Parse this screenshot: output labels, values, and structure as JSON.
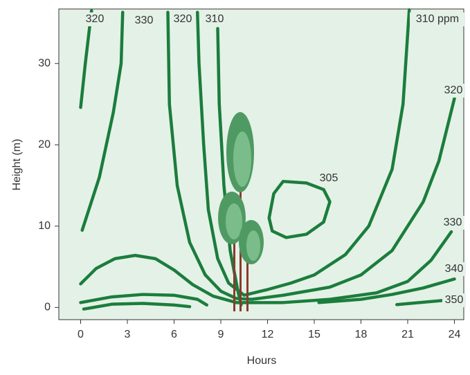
{
  "chart_data": {
    "type": "contour",
    "x_label": "Hours",
    "y_label": "Height (m)",
    "xlim": [
      -1.4,
      24.6
    ],
    "ylim": [
      -1.5,
      36.7
    ],
    "xticks": [
      0,
      3,
      6,
      9,
      12,
      15,
      18,
      21,
      24
    ],
    "yticks": [
      0,
      10,
      20,
      30
    ],
    "color": "#1b7d3c",
    "background": "#e4f1e7",
    "contours": [
      {
        "label": "320",
        "x": [
          0,
          0.3,
          0.7
        ],
        "y": [
          24.6,
          30,
          36.5
        ]
      },
      {
        "label": "330",
        "x": [
          0.1,
          1.2,
          2.1,
          2.6,
          2.7
        ],
        "y": [
          9.5,
          16,
          24,
          30,
          36.3
        ]
      },
      {
        "label": "320",
        "x": [
          5.6,
          5.7,
          6.2,
          7,
          8,
          9,
          10,
          11,
          13,
          16,
          18,
          20,
          22,
          23,
          24
        ],
        "y": [
          36.3,
          25,
          15,
          8,
          4,
          2,
          1.1,
          1,
          1.5,
          2.5,
          4,
          7,
          13,
          18,
          25.7
        ]
      },
      {
        "label": "310",
        "x": [
          7.5,
          7.6,
          7.9,
          8.2,
          8.8,
          9.5,
          10.5,
          12,
          13.5,
          15,
          17,
          18.5,
          20,
          20.7,
          21.1
        ],
        "y": [
          36.3,
          30,
          20,
          12,
          6,
          3,
          1.5,
          2.2,
          3,
          4,
          6.5,
          10,
          17,
          25,
          36.6
        ]
      },
      {
        "label": null,
        "x": [
          8.8,
          8.9,
          9.2,
          9.6,
          10.1,
          10.3
        ],
        "y": [
          34.3,
          25,
          15,
          7,
          2,
          0.3
        ]
      },
      {
        "label": "305",
        "x": [
          12.1,
          12.4,
          13,
          14.5,
          15.6,
          16,
          15.6,
          14.5,
          13.2,
          12.3,
          12.1
        ],
        "y": [
          11,
          14,
          15.5,
          15.3,
          14.5,
          13,
          10.5,
          9,
          8.6,
          9.4,
          11
        ]
      },
      {
        "label": null,
        "x": [
          0,
          1,
          2.2,
          3.5,
          4.8,
          6,
          7.2,
          8.5,
          10
        ],
        "y": [
          2.9,
          4.8,
          6,
          6.4,
          6,
          4.6,
          2.8,
          1.4,
          0.6
        ]
      },
      {
        "label": "330",
        "x": [
          10,
          13,
          16,
          19,
          21,
          22.5,
          23.8
        ],
        "y": [
          0.6,
          0.6,
          1,
          1.8,
          3.2,
          5.8,
          9.3
        ]
      },
      {
        "label": null,
        "x": [
          0,
          2,
          4,
          6,
          7.5,
          8.1
        ],
        "y": [
          0.6,
          1.3,
          1.6,
          1.5,
          1,
          0.3
        ]
      },
      {
        "label": "340",
        "x": [
          15.3,
          18,
          20,
          22,
          24
        ],
        "y": [
          0.6,
          1,
          1.6,
          2.4,
          3.5
        ]
      },
      {
        "label": null,
        "x": [
          0.2,
          2,
          4,
          6,
          7
        ],
        "y": [
          -0.2,
          0.4,
          0.5,
          0.3,
          0.1
        ]
      },
      {
        "label": "350",
        "x": [
          20.3,
          23.2
        ],
        "y": [
          0.35,
          0.85
        ]
      }
    ],
    "label_310_suffix": "310 ppm"
  }
}
